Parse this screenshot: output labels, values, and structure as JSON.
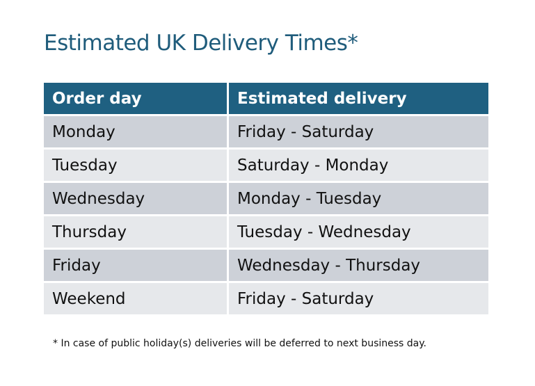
{
  "title": "Estimated UK Delivery Times*",
  "table": {
    "headers": [
      "Order day",
      "Estimated delivery"
    ],
    "rows": [
      [
        "Monday",
        "Friday - Saturday"
      ],
      [
        "Tuesday",
        "Saturday - Monday"
      ],
      [
        "Wednesday",
        "Monday - Tuesday"
      ],
      [
        "Thursday",
        "Tuesday - Wednesday"
      ],
      [
        "Friday",
        "Wednesday - Thursday"
      ],
      [
        "Weekend",
        "Friday - Saturday"
      ]
    ]
  },
  "footnote": "* In case of public holiday(s) deliveries will be deferred to next business day.",
  "colors": {
    "header": "#1f6081",
    "title": "#1f5c7b",
    "row_dark": "#cdd1d8",
    "row_light": "#e6e8eb"
  }
}
